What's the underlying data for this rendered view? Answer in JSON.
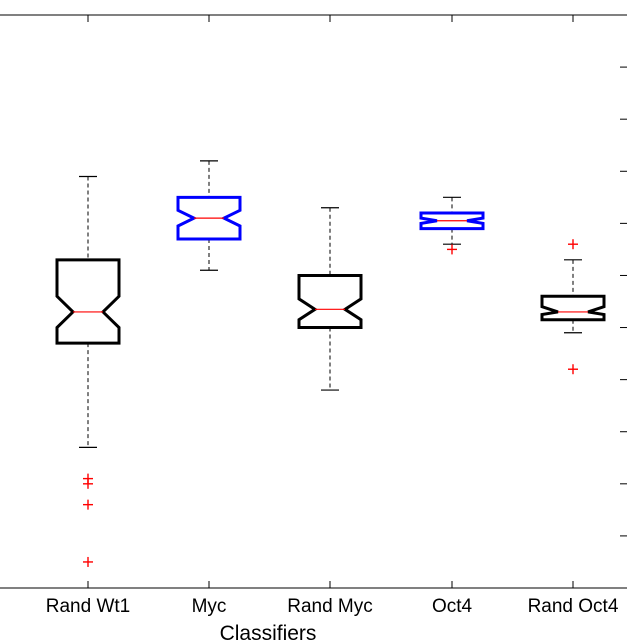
{
  "chart_data": {
    "type": "box",
    "title": "",
    "xlabel": "Classifiers",
    "ylabel": "",
    "ylim": [
      0,
      11
    ],
    "grid": false,
    "legend": null,
    "notched": true,
    "categories": [
      "Rand Wt1",
      "Myc",
      "Rand Myc",
      "Oct4",
      "Rand Oct4"
    ],
    "colors": {
      "Rand Wt1": "#000000",
      "Myc": "#0000ff",
      "Rand Myc": "#000000",
      "Oct4": "#0000ff",
      "Rand Oct4": "#000000",
      "median": "#ff0000",
      "outlier": "#ff0000"
    },
    "boxes": [
      {
        "label": "Rand Wt1",
        "whisker_low": 2.7,
        "q1": 4.7,
        "median": 5.3,
        "q3": 6.3,
        "whisker_high": 7.9,
        "notch_low": 5.0,
        "notch_high": 5.6,
        "outliers": [
          2.1,
          2.0,
          1.6,
          0.5
        ]
      },
      {
        "label": "Myc",
        "whisker_low": 6.1,
        "q1": 6.7,
        "median": 7.1,
        "q3": 7.5,
        "whisker_high": 8.2,
        "notch_low": 6.95,
        "notch_high": 7.25,
        "outliers": []
      },
      {
        "label": "Rand Myc",
        "whisker_low": 3.8,
        "q1": 5.0,
        "median": 5.35,
        "q3": 6.0,
        "whisker_high": 7.3,
        "notch_low": 5.15,
        "notch_high": 5.55,
        "outliers": []
      },
      {
        "label": "Oct4",
        "whisker_low": 6.6,
        "q1": 6.9,
        "median": 7.05,
        "q3": 7.2,
        "whisker_high": 7.5,
        "notch_low": 7.0,
        "notch_high": 7.1,
        "outliers": [
          6.5
        ]
      },
      {
        "label": "Rand Oct4",
        "whisker_low": 4.9,
        "q1": 5.15,
        "median": 5.3,
        "q3": 5.6,
        "whisker_high": 6.3,
        "notch_low": 5.25,
        "notch_high": 5.4,
        "outliers": [
          6.6,
          4.2
        ]
      }
    ]
  }
}
